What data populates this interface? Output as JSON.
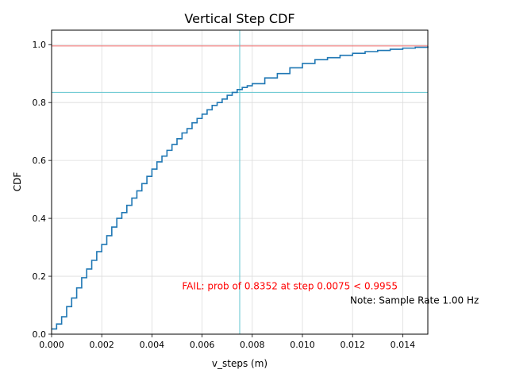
{
  "chart_data": {
    "type": "line",
    "title": "Vertical Step CDF",
    "xlabel": "v_steps (m)",
    "ylabel": "CDF",
    "xlim": [
      0,
      0.015
    ],
    "ylim": [
      0,
      1.05
    ],
    "grid": true,
    "x_ticks": [
      "0.000",
      "0.002",
      "0.004",
      "0.006",
      "0.008",
      "0.010",
      "0.012",
      "0.014"
    ],
    "y_ticks": [
      "0.0",
      "0.2",
      "0.4",
      "0.6",
      "0.8",
      "1.0"
    ],
    "series": [
      {
        "color": "#1f77b4",
        "x": [
          0,
          0.0002,
          0.0004,
          0.0006,
          0.0008,
          0.001,
          0.0012,
          0.0014,
          0.0016,
          0.0018,
          0.002,
          0.0022,
          0.0024,
          0.0026,
          0.0028,
          0.003,
          0.0032,
          0.0034,
          0.0036,
          0.0038,
          0.004,
          0.0042,
          0.0044,
          0.0046,
          0.0048,
          0.005,
          0.0052,
          0.0054,
          0.0056,
          0.0058,
          0.006,
          0.0062,
          0.0064,
          0.0066,
          0.0068,
          0.007,
          0.0072,
          0.0074,
          0.0076,
          0.0078,
          0.008,
          0.0085,
          0.009,
          0.0095,
          0.01,
          0.0105,
          0.011,
          0.0115,
          0.012,
          0.0125,
          0.013,
          0.0135,
          0.014,
          0.0145,
          0.015
        ],
        "y": [
          0.018,
          0.035,
          0.06,
          0.095,
          0.125,
          0.16,
          0.195,
          0.225,
          0.255,
          0.285,
          0.31,
          0.34,
          0.37,
          0.4,
          0.42,
          0.445,
          0.47,
          0.495,
          0.52,
          0.545,
          0.57,
          0.595,
          0.615,
          0.635,
          0.655,
          0.675,
          0.695,
          0.71,
          0.73,
          0.745,
          0.76,
          0.775,
          0.79,
          0.8,
          0.812,
          0.825,
          0.835,
          0.845,
          0.852,
          0.858,
          0.865,
          0.885,
          0.9,
          0.92,
          0.935,
          0.948,
          0.955,
          0.963,
          0.97,
          0.976,
          0.98,
          0.984,
          0.988,
          0.991,
          0.994
        ]
      }
    ],
    "reference_lines": [
      {
        "orientation": "horizontal",
        "value": 0.9955,
        "color": "#ef6a6a"
      },
      {
        "orientation": "horizontal",
        "value": 0.8352,
        "color": "#5fc4cf"
      },
      {
        "orientation": "vertical",
        "value": 0.0075,
        "color": "#5fc4cf"
      }
    ],
    "annotations": [
      {
        "text": "FAIL: prob of 0.8352 at step 0.0075 < 0.9955",
        "color": "#ff0000",
        "x": 0.0052,
        "y": 0.155
      },
      {
        "text": "Note: Sample Rate 1.00 Hz",
        "color": "#000000",
        "x": 0.0119,
        "y": 0.105
      }
    ]
  }
}
